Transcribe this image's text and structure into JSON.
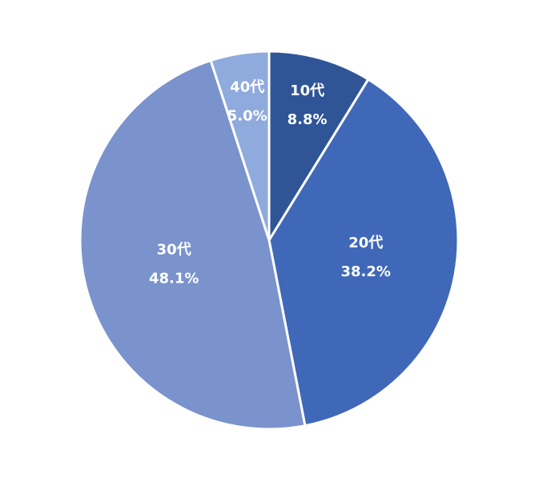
{
  "chart_data": {
    "type": "pie",
    "categories": [
      "10代",
      "20代",
      "30代",
      "40代"
    ],
    "values": [
      8.8,
      38.2,
      48.1,
      5.0
    ],
    "value_labels": [
      "8.8%",
      "38.2%",
      "48.1%",
      "5.0%"
    ],
    "colors": [
      "#2f5597",
      "#4068b8",
      "#7a93cc",
      "#8faadc"
    ]
  }
}
